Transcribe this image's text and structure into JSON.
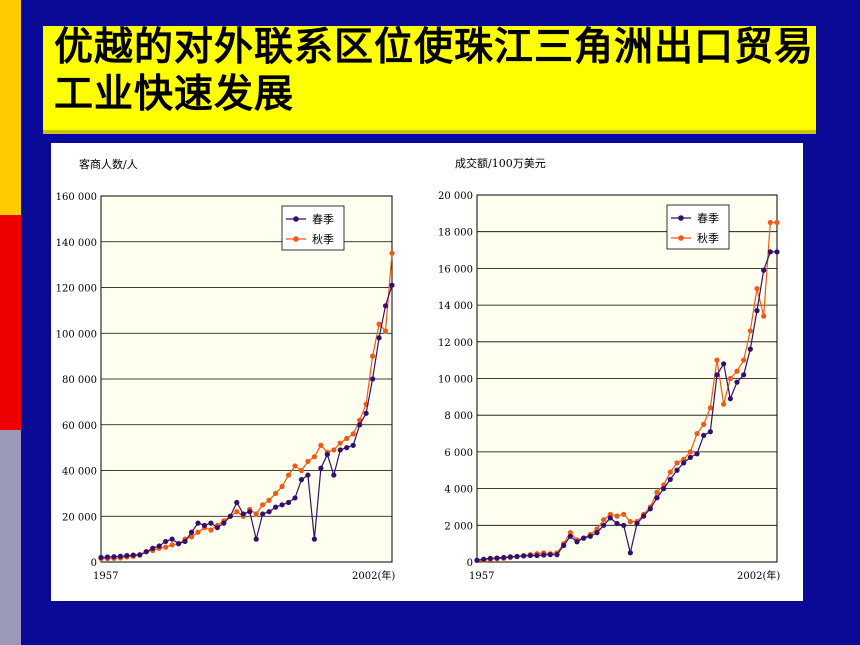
{
  "slide": {
    "title": "优越的对外联系区位使珠江三角洲出口贸易工业快速发展",
    "colors": {
      "background": "#0a0a96",
      "title_bg": "#ffff00",
      "plot_bg": "#fffff0",
      "spring": "#33106e",
      "autumn": "#f05a14"
    }
  },
  "chart_data": [
    {
      "type": "line",
      "ylabel": "客商人数/人",
      "ylim": [
        0,
        160000
      ],
      "yticks": [
        "0",
        "20 000",
        "40 000",
        "60 000",
        "80 000",
        "100 000",
        "120 000",
        "140 000",
        "160 000"
      ],
      "x_start": "1957",
      "x_end": "2002(年)",
      "xlim": [
        1957,
        2002
      ],
      "legend_position": "top-right",
      "series": [
        {
          "name": "春季",
          "x": [
            1957,
            1958,
            1959,
            1960,
            1961,
            1962,
            1963,
            1964,
            1965,
            1966,
            1967,
            1968,
            1969,
            1970,
            1971,
            1972,
            1973,
            1974,
            1975,
            1976,
            1977,
            1978,
            1979,
            1980,
            1981,
            1982,
            1983,
            1984,
            1985,
            1986,
            1987,
            1988,
            1989,
            1990,
            1991,
            1992,
            1993,
            1994,
            1995,
            1996,
            1997,
            1998,
            1999,
            2000,
            2001,
            2002
          ],
          "values": [
            2000,
            2200,
            2300,
            2500,
            2800,
            3000,
            3200,
            4500,
            6000,
            7000,
            9000,
            10000,
            8000,
            9000,
            13000,
            17000,
            16000,
            17000,
            15000,
            17000,
            20000,
            26000,
            21000,
            22000,
            10000,
            21000,
            22000,
            24000,
            25000,
            26000,
            28000,
            36000,
            38000,
            10000,
            41000,
            47000,
            38000,
            49000,
            50000,
            51000,
            60000,
            65000,
            80000,
            98000,
            112000,
            121000
          ]
        },
        {
          "name": "秋季",
          "x": [
            1957,
            1958,
            1959,
            1960,
            1961,
            1962,
            1963,
            1964,
            1965,
            1966,
            1967,
            1968,
            1969,
            1970,
            1971,
            1972,
            1973,
            1974,
            1975,
            1976,
            1977,
            1978,
            1979,
            1980,
            1981,
            1982,
            1983,
            1984,
            1985,
            1986,
            1987,
            1988,
            1989,
            1990,
            1991,
            1992,
            1993,
            1994,
            1995,
            1996,
            1997,
            1998,
            1999,
            2000,
            2001,
            2002
          ],
          "values": [
            1500,
            1500,
            1600,
            1800,
            2200,
            2500,
            3000,
            4500,
            5000,
            6000,
            6500,
            7500,
            8000,
            10000,
            11000,
            13000,
            15000,
            14000,
            16000,
            18000,
            20000,
            22000,
            20000,
            23000,
            21000,
            25000,
            27000,
            30000,
            33000,
            38000,
            42000,
            40000,
            44000,
            46000,
            51000,
            48000,
            49000,
            52000,
            54000,
            56000,
            62000,
            69000,
            90000,
            104000,
            101000,
            135000
          ]
        }
      ]
    },
    {
      "type": "line",
      "ylabel": "成交额/100万美元",
      "ylim": [
        0,
        20000
      ],
      "yticks": [
        "0",
        "2 000",
        "4 000",
        "6 000",
        "8 000",
        "10 000",
        "12 000",
        "14 000",
        "16 000",
        "18 000",
        "20 000"
      ],
      "x_start": "1957",
      "x_end": "2002(年)",
      "xlim": [
        1957,
        2002
      ],
      "legend_position": "top-right",
      "series": [
        {
          "name": "春季",
          "x": [
            1957,
            1958,
            1959,
            1960,
            1961,
            1962,
            1963,
            1964,
            1965,
            1966,
            1967,
            1968,
            1969,
            1970,
            1971,
            1972,
            1973,
            1974,
            1975,
            1976,
            1977,
            1978,
            1979,
            1980,
            1981,
            1982,
            1983,
            1984,
            1985,
            1986,
            1987,
            1988,
            1989,
            1990,
            1991,
            1992,
            1993,
            1994,
            1995,
            1996,
            1997,
            1998,
            1999,
            2000,
            2001,
            2002
          ],
          "values": [
            100,
            150,
            200,
            220,
            250,
            280,
            300,
            330,
            350,
            350,
            380,
            400,
            400,
            900,
            1400,
            1100,
            1300,
            1400,
            1600,
            2000,
            2400,
            2100,
            2000,
            500,
            2100,
            2500,
            2900,
            3500,
            4000,
            4500,
            5000,
            5400,
            5700,
            5900,
            6900,
            7100,
            10200,
            10800,
            8900,
            9800,
            10200,
            11600,
            13700,
            15900,
            16900,
            16900
          ]
        },
        {
          "name": "秋季",
          "x": [
            1957,
            1958,
            1959,
            1960,
            1961,
            1962,
            1963,
            1964,
            1965,
            1966,
            1967,
            1968,
            1969,
            1970,
            1971,
            1972,
            1973,
            1974,
            1975,
            1976,
            1977,
            1978,
            1979,
            1980,
            1981,
            1982,
            1983,
            1984,
            1985,
            1986,
            1987,
            1988,
            1989,
            1990,
            1991,
            1992,
            1993,
            1994,
            1995,
            1996,
            1997,
            1998,
            1999,
            2000,
            2001,
            2002
          ],
          "values": [
            80,
            100,
            150,
            180,
            200,
            250,
            300,
            350,
            400,
            450,
            500,
            450,
            500,
            1000,
            1600,
            1200,
            1300,
            1500,
            1800,
            2300,
            2600,
            2500,
            2600,
            2200,
            2200,
            2600,
            3000,
            3800,
            4200,
            4900,
            5400,
            5600,
            6000,
            7000,
            7500,
            8400,
            11000,
            8600,
            10000,
            10400,
            11000,
            12600,
            14900,
            13400,
            18500,
            18500
          ]
        }
      ]
    }
  ]
}
